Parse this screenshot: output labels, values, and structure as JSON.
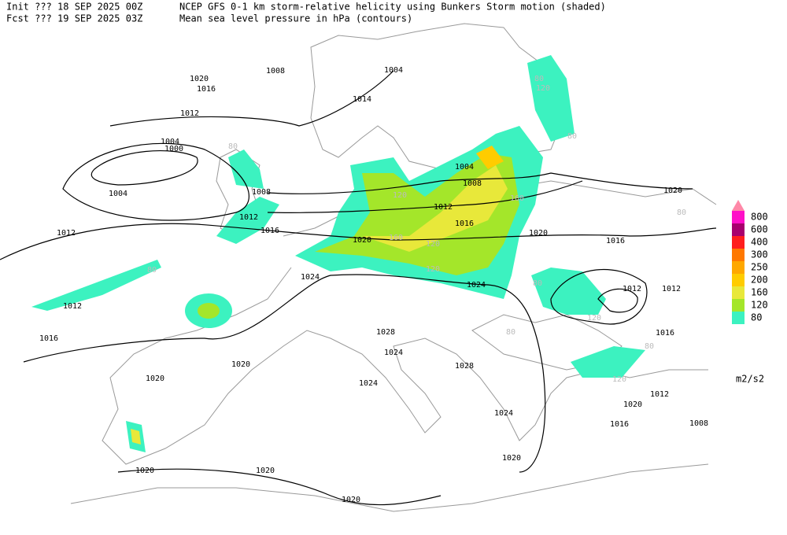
{
  "header": {
    "line1_left": "Init  ??? 18 SEP 2025 00Z",
    "line1_right": "NCEP GFS 0-1 km storm-relative helicity using Bunkers Storm motion (shaded)",
    "line2_left": "Fcst ??? 19 SEP 2025 03Z",
    "line2_right": "Mean sea level pressure in hPa (contours)"
  },
  "legend": {
    "levels": [
      80,
      120,
      160,
      200,
      250,
      300,
      400,
      600,
      800
    ],
    "colors": [
      "#3cf2c0",
      "#a4e62a",
      "#e8e83a",
      "#ffcc00",
      "#ffa800",
      "#ff7800",
      "#ff1e1e",
      "#a8006e",
      "#ff10c8"
    ],
    "over_color": "#ff88a8",
    "units": "m2/s2"
  },
  "contour_labels": [
    1020,
    1016,
    1008,
    1004,
    1014,
    1012,
    1004,
    1000,
    1004,
    1008,
    1004,
    1008,
    1012,
    1016,
    1012,
    1012,
    1016,
    1020,
    1020,
    1016,
    1020,
    1024,
    1024,
    1012,
    1012,
    1012,
    1016,
    1016,
    1028,
    1024,
    1028,
    1020,
    1020,
    1024,
    1012,
    1020,
    1024,
    1016,
    1008,
    1020,
    1020,
    1020,
    1020
  ],
  "shading_labels": [
    80,
    120,
    160,
    120,
    160,
    120,
    80,
    80,
    120,
    80,
    80,
    80,
    120,
    80,
    80,
    120
  ]
}
